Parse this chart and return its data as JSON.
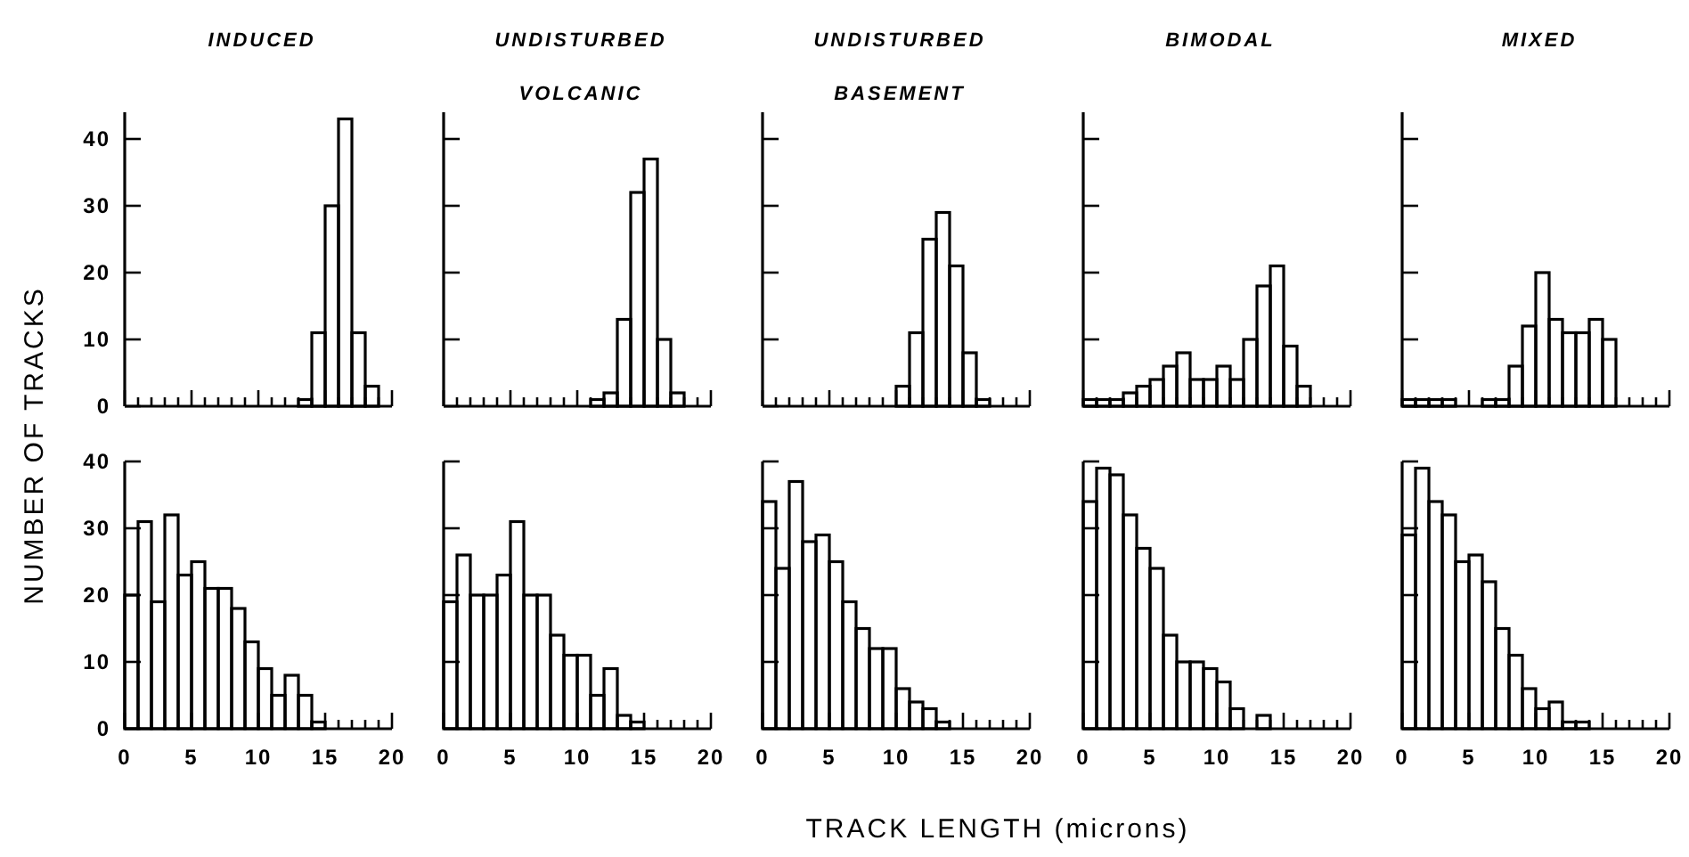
{
  "chart_data": [
    {
      "type": "histogram",
      "title": "INDUCED",
      "ylabel": "NUMBER OF TRACKS",
      "color": "#000000",
      "bins": [
        0,
        1,
        2,
        3,
        4,
        5,
        6,
        7,
        8,
        9,
        10,
        11,
        12,
        13,
        14,
        15,
        16,
        17,
        18,
        19,
        20
      ],
      "values": [
        0,
        0,
        0,
        0,
        0,
        0,
        0,
        0,
        0,
        0,
        0,
        0,
        0,
        1,
        11,
        30,
        43,
        11,
        3,
        0
      ],
      "xlim": [
        0,
        20
      ],
      "ylim": [
        0,
        44
      ],
      "xticks": [
        0,
        {
          "value": 1,
          "label": null
        },
        {
          "value": 2,
          "label": null
        },
        {
          "value": 3,
          "label": null
        },
        {
          "value": 4,
          "label": null
        },
        5,
        {
          "value": 6,
          "label": null
        },
        {
          "value": 7,
          "label": null
        },
        {
          "value": 8,
          "label": null
        },
        {
          "value": 9,
          "label": null
        },
        10,
        {
          "value": 11,
          "label": null
        },
        {
          "value": 12,
          "label": null
        },
        {
          "value": 13,
          "label": null
        },
        {
          "value": 14,
          "label": null
        },
        15,
        {
          "value": 16,
          "label": null
        },
        {
          "value": 17,
          "label": null
        },
        {
          "value": 18,
          "label": null
        },
        {
          "value": 19,
          "label": null
        },
        20
      ],
      "yticks": [
        0,
        10,
        20,
        30,
        40
      ],
      "tick_labels": "y"
    },
    {
      "type": "histogram",
      "title": "UNDISTURBED\nVOLCANIC",
      "color": "#000000",
      "bins": [
        0,
        1,
        2,
        3,
        4,
        5,
        6,
        7,
        8,
        9,
        10,
        11,
        12,
        13,
        14,
        15,
        16,
        17,
        18,
        19,
        20
      ],
      "values": [
        0,
        0,
        0,
        0,
        0,
        0,
        0,
        0,
        0,
        0,
        0,
        1,
        2,
        13,
        32,
        37,
        10,
        2,
        0,
        0
      ],
      "xlim": [
        0,
        20
      ],
      "ylim": [
        0,
        44
      ],
      "xticks": [
        0,
        {
          "value": 1,
          "label": null
        },
        {
          "value": 2,
          "label": null
        },
        {
          "value": 3,
          "label": null
        },
        {
          "value": 4,
          "label": null
        },
        5,
        {
          "value": 6,
          "label": null
        },
        {
          "value": 7,
          "label": null
        },
        {
          "value": 8,
          "label": null
        },
        {
          "value": 9,
          "label": null
        },
        10,
        {
          "value": 11,
          "label": null
        },
        {
          "value": 12,
          "label": null
        },
        {
          "value": 13,
          "label": null
        },
        {
          "value": 14,
          "label": null
        },
        15,
        {
          "value": 16,
          "label": null
        },
        {
          "value": 17,
          "label": null
        },
        {
          "value": 18,
          "label": null
        },
        {
          "value": 19,
          "label": null
        },
        20
      ],
      "yticks": [
        0,
        10,
        20,
        30,
        40
      ],
      "tick_labels": false
    },
    {
      "type": "histogram",
      "title": "UNDISTURBED\nBASEMENT",
      "color": "#000000",
      "bins": [
        0,
        1,
        2,
        3,
        4,
        5,
        6,
        7,
        8,
        9,
        10,
        11,
        12,
        13,
        14,
        15,
        16,
        17,
        18,
        19,
        20
      ],
      "values": [
        0,
        0,
        0,
        0,
        0,
        0,
        0,
        0,
        0,
        0,
        3,
        11,
        25,
        29,
        21,
        8,
        1,
        0,
        0,
        0
      ],
      "xlim": [
        0,
        20
      ],
      "ylim": [
        0,
        44
      ],
      "xticks": [
        0,
        {
          "value": 1,
          "label": null
        },
        {
          "value": 2,
          "label": null
        },
        {
          "value": 3,
          "label": null
        },
        {
          "value": 4,
          "label": null
        },
        5,
        {
          "value": 6,
          "label": null
        },
        {
          "value": 7,
          "label": null
        },
        {
          "value": 8,
          "label": null
        },
        {
          "value": 9,
          "label": null
        },
        10,
        {
          "value": 11,
          "label": null
        },
        {
          "value": 12,
          "label": null
        },
        {
          "value": 13,
          "label": null
        },
        {
          "value": 14,
          "label": null
        },
        15,
        {
          "value": 16,
          "label": null
        },
        {
          "value": 17,
          "label": null
        },
        {
          "value": 18,
          "label": null
        },
        {
          "value": 19,
          "label": null
        },
        20
      ],
      "yticks": [
        0,
        10,
        20,
        30,
        40
      ],
      "tick_labels": false
    },
    {
      "type": "histogram",
      "title": "BIMODAL",
      "color": "#000000",
      "bins": [
        0,
        1,
        2,
        3,
        4,
        5,
        6,
        7,
        8,
        9,
        10,
        11,
        12,
        13,
        14,
        15,
        16,
        17,
        18,
        19,
        20
      ],
      "values": [
        1,
        1,
        1,
        2,
        3,
        4,
        6,
        8,
        4,
        4,
        6,
        4,
        10,
        18,
        21,
        9,
        3,
        0,
        0,
        0
      ],
      "xlim": [
        0,
        20
      ],
      "ylim": [
        0,
        44
      ],
      "xticks": [
        0,
        {
          "value": 1,
          "label": null
        },
        {
          "value": 2,
          "label": null
        },
        {
          "value": 3,
          "label": null
        },
        {
          "value": 4,
          "label": null
        },
        5,
        {
          "value": 6,
          "label": null
        },
        {
          "value": 7,
          "label": null
        },
        {
          "value": 8,
          "label": null
        },
        {
          "value": 9,
          "label": null
        },
        10,
        {
          "value": 11,
          "label": null
        },
        {
          "value": 12,
          "label": null
        },
        {
          "value": 13,
          "label": null
        },
        {
          "value": 14,
          "label": null
        },
        15,
        {
          "value": 16,
          "label": null
        },
        {
          "value": 17,
          "label": null
        },
        {
          "value": 18,
          "label": null
        },
        {
          "value": 19,
          "label": null
        },
        20
      ],
      "yticks": [
        0,
        10,
        20,
        30,
        40
      ],
      "tick_labels": false
    },
    {
      "type": "histogram",
      "title": "MIXED",
      "color": "#000000",
      "bins": [
        0,
        1,
        2,
        3,
        4,
        5,
        6,
        7,
        8,
        9,
        10,
        11,
        12,
        13,
        14,
        15,
        16,
        17,
        18,
        19,
        20
      ],
      "values": [
        1,
        1,
        1,
        1,
        0,
        0,
        1,
        1,
        6,
        12,
        20,
        13,
        11,
        11,
        13,
        10,
        0,
        0,
        0,
        0
      ],
      "xlim": [
        0,
        20
      ],
      "ylim": [
        0,
        44
      ],
      "xticks": [
        0,
        {
          "value": 1,
          "label": null
        },
        {
          "value": 2,
          "label": null
        },
        {
          "value": 3,
          "label": null
        },
        {
          "value": 4,
          "label": null
        },
        5,
        {
          "value": 6,
          "label": null
        },
        {
          "value": 7,
          "label": null
        },
        {
          "value": 8,
          "label": null
        },
        {
          "value": 9,
          "label": null
        },
        10,
        {
          "value": 11,
          "label": null
        },
        {
          "value": 12,
          "label": null
        },
        {
          "value": 13,
          "label": null
        },
        {
          "value": 14,
          "label": null
        },
        15,
        {
          "value": 16,
          "label": null
        },
        {
          "value": 17,
          "label": null
        },
        {
          "value": 18,
          "label": null
        },
        {
          "value": 19,
          "label": null
        },
        20
      ],
      "yticks": [
        0,
        10,
        20,
        30,
        40
      ],
      "tick_labels": false
    },
    {
      "type": "histogram",
      "color": "#000000",
      "bins": [
        0,
        1,
        2,
        3,
        4,
        5,
        6,
        7,
        8,
        9,
        10,
        11,
        12,
        13,
        14,
        15,
        16,
        17,
        18,
        19,
        20
      ],
      "values": [
        20,
        31,
        19,
        32,
        23,
        25,
        21,
        21,
        18,
        13,
        9,
        5,
        8,
        5,
        1,
        0,
        0,
        0,
        0,
        0
      ],
      "xlim": [
        0,
        20
      ],
      "ylim": [
        0,
        40
      ],
      "xticks": [
        0,
        {
          "value": 1,
          "label": null
        },
        {
          "value": 2,
          "label": null
        },
        {
          "value": 3,
          "label": null
        },
        {
          "value": 4,
          "label": null
        },
        5,
        {
          "value": 6,
          "label": null
        },
        {
          "value": 7,
          "label": null
        },
        {
          "value": 8,
          "label": null
        },
        {
          "value": 9,
          "label": null
        },
        10,
        {
          "value": 11,
          "label": null
        },
        {
          "value": 12,
          "label": null
        },
        {
          "value": 13,
          "label": null
        },
        {
          "value": 14,
          "label": null
        },
        15,
        {
          "value": 16,
          "label": null
        },
        {
          "value": 17,
          "label": null
        },
        {
          "value": 18,
          "label": null
        },
        {
          "value": 19,
          "label": null
        },
        20
      ],
      "yticks": [
        0,
        10,
        20,
        30,
        40
      ]
    },
    {
      "type": "histogram",
      "color": "#000000",
      "bins": [
        0,
        1,
        2,
        3,
        4,
        5,
        6,
        7,
        8,
        9,
        10,
        11,
        12,
        13,
        14,
        15,
        16,
        17,
        18,
        19,
        20
      ],
      "values": [
        19,
        26,
        20,
        20,
        23,
        31,
        20,
        20,
        14,
        11,
        11,
        5,
        9,
        2,
        1,
        0,
        0,
        0,
        0,
        0
      ],
      "xlim": [
        0,
        20
      ],
      "ylim": [
        0,
        40
      ],
      "xticks": [
        0,
        {
          "value": 1,
          "label": null
        },
        {
          "value": 2,
          "label": null
        },
        {
          "value": 3,
          "label": null
        },
        {
          "value": 4,
          "label": null
        },
        5,
        {
          "value": 6,
          "label": null
        },
        {
          "value": 7,
          "label": null
        },
        {
          "value": 8,
          "label": null
        },
        {
          "value": 9,
          "label": null
        },
        10,
        {
          "value": 11,
          "label": null
        },
        {
          "value": 12,
          "label": null
        },
        {
          "value": 13,
          "label": null
        },
        {
          "value": 14,
          "label": null
        },
        15,
        {
          "value": 16,
          "label": null
        },
        {
          "value": 17,
          "label": null
        },
        {
          "value": 18,
          "label": null
        },
        {
          "value": 19,
          "label": null
        },
        20
      ],
      "yticks": [
        0,
        10,
        20,
        30,
        40
      ],
      "tick_labels": "x"
    },
    {
      "type": "histogram",
      "xlabel": "TRACK LENGTH (microns)",
      "color": "#000000",
      "bins": [
        0,
        1,
        2,
        3,
        4,
        5,
        6,
        7,
        8,
        9,
        10,
        11,
        12,
        13,
        14,
        15,
        16,
        17,
        18,
        19,
        20
      ],
      "values": [
        34,
        24,
        37,
        28,
        29,
        25,
        19,
        15,
        12,
        12,
        6,
        4,
        3,
        1,
        0,
        0,
        0,
        0,
        0,
        0
      ],
      "xlim": [
        0,
        20
      ],
      "ylim": [
        0,
        40
      ],
      "xticks": [
        0,
        {
          "value": 1,
          "label": null
        },
        {
          "value": 2,
          "label": null
        },
        {
          "value": 3,
          "label": null
        },
        {
          "value": 4,
          "label": null
        },
        5,
        {
          "value": 6,
          "label": null
        },
        {
          "value": 7,
          "label": null
        },
        {
          "value": 8,
          "label": null
        },
        {
          "value": 9,
          "label": null
        },
        10,
        {
          "value": 11,
          "label": null
        },
        {
          "value": 12,
          "label": null
        },
        {
          "value": 13,
          "label": null
        },
        {
          "value": 14,
          "label": null
        },
        15,
        {
          "value": 16,
          "label": null
        },
        {
          "value": 17,
          "label": null
        },
        {
          "value": 18,
          "label": null
        },
        {
          "value": 19,
          "label": null
        },
        20
      ],
      "yticks": [
        0,
        10,
        20,
        30,
        40
      ],
      "tick_labels": "x"
    },
    {
      "type": "histogram",
      "color": "#000000",
      "bins": [
        0,
        1,
        2,
        3,
        4,
        5,
        6,
        7,
        8,
        9,
        10,
        11,
        12,
        13,
        14,
        15,
        16,
        17,
        18,
        19,
        20
      ],
      "values": [
        34,
        39,
        38,
        32,
        27,
        24,
        14,
        10,
        10,
        9,
        7,
        3,
        0,
        2,
        0,
        0,
        0,
        0,
        0,
        0
      ],
      "xlim": [
        0,
        20
      ],
      "ylim": [
        0,
        40
      ],
      "xticks": [
        0,
        {
          "value": 1,
          "label": null
        },
        {
          "value": 2,
          "label": null
        },
        {
          "value": 3,
          "label": null
        },
        {
          "value": 4,
          "label": null
        },
        5,
        {
          "value": 6,
          "label": null
        },
        {
          "value": 7,
          "label": null
        },
        {
          "value": 8,
          "label": null
        },
        {
          "value": 9,
          "label": null
        },
        10,
        {
          "value": 11,
          "label": null
        },
        {
          "value": 12,
          "label": null
        },
        {
          "value": 13,
          "label": null
        },
        {
          "value": 14,
          "label": null
        },
        15,
        {
          "value": 16,
          "label": null
        },
        {
          "value": 17,
          "label": null
        },
        {
          "value": 18,
          "label": null
        },
        {
          "value": 19,
          "label": null
        },
        20
      ],
      "yticks": [
        0,
        10,
        20,
        30,
        40
      ],
      "tick_labels": "x"
    },
    {
      "type": "histogram",
      "color": "#000000",
      "bins": [
        0,
        1,
        2,
        3,
        4,
        5,
        6,
        7,
        8,
        9,
        10,
        11,
        12,
        13,
        14,
        15,
        16,
        17,
        18,
        19,
        20
      ],
      "values": [
        29,
        39,
        34,
        32,
        25,
        26,
        22,
        15,
        11,
        6,
        3,
        4,
        1,
        1,
        0,
        0,
        0,
        0,
        0,
        0
      ],
      "xlim": [
        0,
        20
      ],
      "ylim": [
        0,
        40
      ],
      "xticks": [
        0,
        {
          "value": 1,
          "label": null
        },
        {
          "value": 2,
          "label": null
        },
        {
          "value": 3,
          "label": null
        },
        {
          "value": 4,
          "label": null
        },
        5,
        {
          "value": 6,
          "label": null
        },
        {
          "value": 7,
          "label": null
        },
        {
          "value": 8,
          "label": null
        },
        {
          "value": 9,
          "label": null
        },
        10,
        {
          "value": 11,
          "label": null
        },
        {
          "value": 12,
          "label": null
        },
        {
          "value": 13,
          "label": null
        },
        {
          "value": 14,
          "label": null
        },
        15,
        {
          "value": 16,
          "label": null
        },
        {
          "value": 17,
          "label": null
        },
        {
          "value": 18,
          "label": null
        },
        {
          "value": 19,
          "label": null
        },
        20
      ],
      "yticks": [
        0,
        10,
        20,
        30,
        40
      ],
      "tick_labels": "x"
    }
  ]
}
